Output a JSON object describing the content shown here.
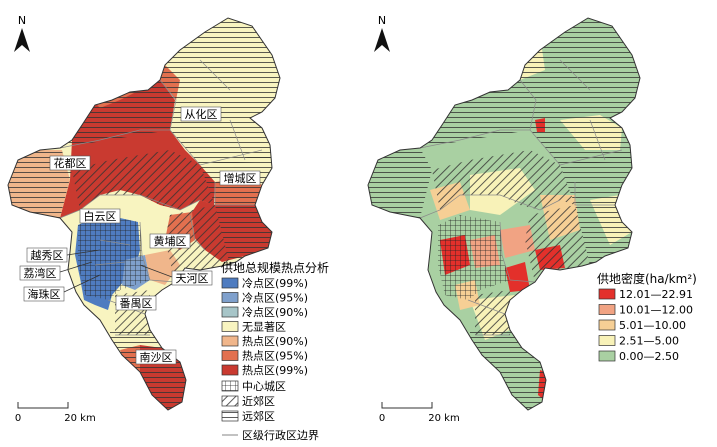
{
  "colors": {
    "cold99": "#4f7cc0",
    "cold95": "#7fa0cc",
    "cold90": "#a7c5c8",
    "not_significant": "#f8f4c0",
    "hot90": "#f0b68b",
    "hot95": "#e2704f",
    "hot99": "#c93a30",
    "density_1": "#e3302b",
    "density_2": "#f1a383",
    "density_3": "#f6cf95",
    "density_4": "#f8f2b8",
    "density_5": "#a9d0a2",
    "boundary": "#888888",
    "stroke": "#333333"
  },
  "map1": {
    "north_label": "N",
    "district_labels": {
      "conghua": "从化区",
      "huadu": "花都区",
      "zengcheng": "增城区",
      "baiyun": "白云区",
      "huangpu": "黄埔区",
      "yuexiu": "越秀区",
      "liwan": "荔湾区",
      "haizhu": "海珠区",
      "tianhe": "天河区",
      "panyu": "番禺区",
      "nansha": "南沙区"
    },
    "legend": {
      "title": "供地总规模热点分析",
      "items": [
        {
          "label": "冷点区(99%)",
          "color_key": "cold99"
        },
        {
          "label": "冷点区(95%)",
          "color_key": "cold95"
        },
        {
          "label": "冷点区(90%)",
          "color_key": "cold90"
        },
        {
          "label": "无显著区",
          "color_key": "not_significant"
        },
        {
          "label": "热点区(90%)",
          "color_key": "hot90"
        },
        {
          "label": "热点区(95%)",
          "color_key": "hot95"
        },
        {
          "label": "热点区(99%)",
          "color_key": "hot99"
        }
      ],
      "pattern_items": [
        {
          "label": "中心城区",
          "pattern": "grid"
        },
        {
          "label": "近郊区",
          "pattern": "diagonal"
        },
        {
          "label": "远郊区",
          "pattern": "horizontal"
        }
      ],
      "boundary_label": "区级行政区边界"
    },
    "scale": {
      "start": "0",
      "end": "20 km"
    }
  },
  "map2": {
    "north_label": "N",
    "legend": {
      "title": "供地密度(ha/km²)",
      "items": [
        {
          "label": "12.01—22.91",
          "color_key": "density_1"
        },
        {
          "label": "10.01—12.00",
          "color_key": "density_2"
        },
        {
          "label": "5.01—10.00",
          "color_key": "density_3"
        },
        {
          "label": "2.51—5.00",
          "color_key": "density_4"
        },
        {
          "label": "0.00—2.50",
          "color_key": "density_5"
        }
      ]
    },
    "scale": {
      "start": "0",
      "end": "20 km"
    }
  }
}
